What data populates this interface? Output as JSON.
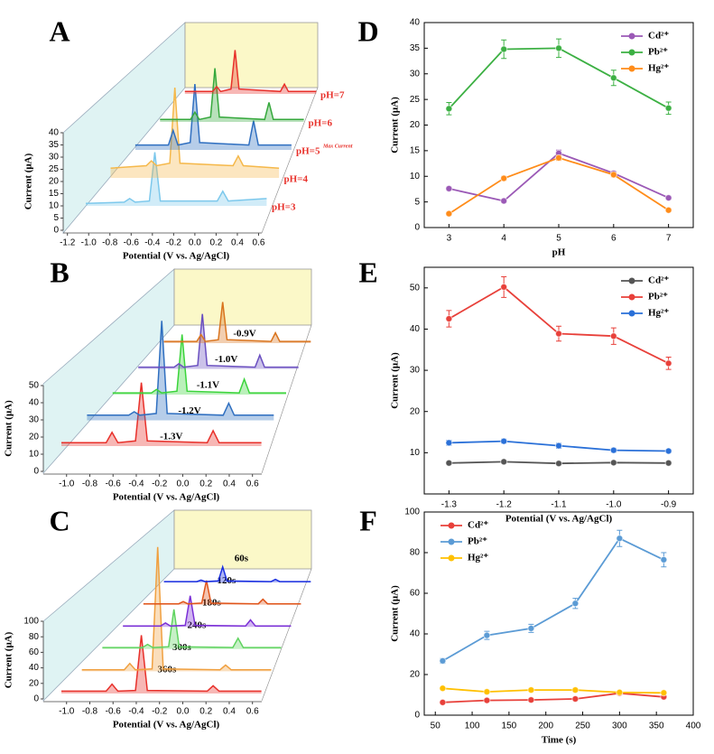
{
  "chart_data": [
    {
      "type": "waterfall",
      "label": "A",
      "xlabel": "Potential (V vs. Ag/AgCl)",
      "ylabel": "Current (μA)",
      "xlim": [
        -1.24,
        0.63
      ],
      "ylim": [
        0,
        40
      ],
      "xticks": [
        -1.2,
        {
          "value": -1,
          "label": "-1.0"
        },
        -0.8,
        -0.6,
        -0.4,
        -0.2,
        {
          "value": 0,
          "label": "0.0"
        },
        0.2,
        0.4,
        0.6
      ],
      "yticks": [
        0,
        5,
        10,
        15,
        20,
        25,
        30,
        35,
        40
      ],
      "label_color": "#e8302a",
      "annotation": "Max Current",
      "annotation_series": 2,
      "x": [
        -1.05,
        -0.7,
        -0.65,
        -0.6,
        -0.47,
        -0.42,
        -0.37,
        0.15,
        0.2,
        0.25,
        0.6
      ],
      "series": [
        {
          "name": "pH=3",
          "color": "#7cc8ec",
          "values": [
            1,
            1.5,
            3,
            1.5,
            2,
            22,
            2,
            2,
            6,
            2,
            3
          ]
        },
        {
          "name": "pH=4",
          "color": "#f5b84a",
          "values": [
            4,
            5,
            7,
            5,
            6,
            37,
            6,
            5,
            9,
            5,
            4
          ]
        },
        {
          "name": "pH=5",
          "color": "#2f6fc0",
          "values": [
            2,
            2,
            8,
            2,
            3,
            27,
            3,
            2,
            12,
            2,
            2
          ]
        },
        {
          "name": "pH=6",
          "color": "#35a83c",
          "values": [
            1,
            1,
            4,
            1,
            2,
            22,
            2,
            1,
            8,
            1,
            1
          ]
        },
        {
          "name": "pH=7",
          "color": "#e8302a",
          "values": [
            1,
            1,
            3,
            1,
            2,
            18,
            2,
            1,
            4,
            1,
            1
          ]
        }
      ]
    },
    {
      "type": "waterfall",
      "label": "B",
      "xlabel": "Potential (V vs. Ag/AgCl)",
      "ylabel": "Current (μA)",
      "xlim": [
        -1.2,
        0.68
      ],
      "ylim": [
        0,
        50
      ],
      "xticks": [
        {
          "value": -1,
          "label": "-1.0"
        },
        -0.8,
        -0.6,
        -0.4,
        -0.2,
        {
          "value": 0,
          "label": "0.0"
        },
        0.2,
        0.4,
        0.6
      ],
      "yticks": [
        0,
        10,
        20,
        30,
        40,
        50
      ],
      "label_color": "#000000",
      "x": [
        -1.1,
        -0.72,
        -0.67,
        -0.62,
        -0.47,
        -0.42,
        -0.37,
        0.14,
        0.19,
        0.24,
        0.6
      ],
      "series": [
        {
          "name": "-1.3V",
          "color": "#e8302a",
          "values": [
            2,
            2,
            8,
            2,
            3,
            37,
            3,
            2,
            9,
            2,
            2
          ]
        },
        {
          "name": "-1.2V",
          "color": "#2f6fc0",
          "values": [
            3,
            3,
            5,
            3,
            4,
            58,
            4,
            3,
            10,
            3,
            3
          ]
        },
        {
          "name": "-1.1V",
          "color": "#3ad43a",
          "values": [
            1,
            1,
            3,
            1,
            2,
            35,
            2,
            1,
            9,
            1,
            1
          ]
        },
        {
          "name": "-1.0V",
          "color": "#6a4fc0",
          "values": [
            1,
            1,
            3,
            1,
            2,
            32,
            2,
            1,
            8,
            1,
            1
          ]
        },
        {
          "name": "-0.9V",
          "color": "#d9741e",
          "values": [
            1,
            1,
            5,
            1,
            2,
            24,
            2,
            1,
            6,
            1,
            1
          ]
        }
      ]
    },
    {
      "type": "waterfall",
      "label": "C",
      "xlabel": "Potential (V vs. Ag/AgCl)",
      "ylabel": "Current (μA)",
      "xlim": [
        -1.2,
        0.68
      ],
      "ylim": [
        0,
        100
      ],
      "xticks": [
        {
          "value": -1,
          "label": "-1.0"
        },
        -0.8,
        -0.6,
        -0.4,
        -0.2,
        {
          "value": 0,
          "label": "0.0"
        },
        0.2,
        0.4,
        0.6
      ],
      "yticks": [
        0,
        20,
        40,
        60,
        80,
        100
      ],
      "label_color": "#000000",
      "x": [
        -1.1,
        -0.72,
        -0.67,
        -0.62,
        -0.47,
        -0.42,
        -0.37,
        0.14,
        0.19,
        0.24,
        0.6
      ],
      "series": [
        {
          "name": "360s",
          "color": "#e8302a",
          "values": [
            3,
            3,
            12,
            3,
            4,
            75,
            4,
            3,
            10,
            3,
            3
          ]
        },
        {
          "name": "300s",
          "color": "#f0a040",
          "values": [
            2,
            2,
            10,
            2,
            3,
            160,
            3,
            2,
            8,
            2,
            2
          ]
        },
        {
          "name": "240s",
          "color": "#5fd35f",
          "values": [
            2,
            2,
            6,
            2,
            3,
            51,
            3,
            2,
            14,
            2,
            2
          ]
        },
        {
          "name": "180s",
          "color": "#7b2fd6",
          "values": [
            1,
            1,
            5,
            1,
            2,
            40,
            2,
            1,
            9,
            1,
            1
          ]
        },
        {
          "name": "120s",
          "color": "#e0541a",
          "values": [
            1,
            1,
            4,
            1,
            2,
            31,
            2,
            1,
            7,
            1,
            1
          ]
        },
        {
          "name": "60s",
          "color": "#1a2fe0",
          "values": [
            1,
            1,
            3,
            1,
            2,
            20,
            2,
            1,
            4,
            1,
            1
          ]
        }
      ]
    },
    {
      "type": "line",
      "label": "D",
      "xlabel": "pH",
      "ylabel": "Current (μA)",
      "xlim": [
        2.55,
        7.45
      ],
      "ylim": [
        0,
        40
      ],
      "xticks": [
        3,
        4,
        5,
        6,
        7
      ],
      "yticks": [
        0,
        5,
        10,
        15,
        20,
        25,
        30,
        35,
        40
      ],
      "legend": "upper right",
      "x": [
        3,
        4,
        5,
        6,
        7
      ],
      "series": [
        {
          "name": "Cd²⁺",
          "color": "#9b59b6",
          "values": [
            7.6,
            5.2,
            14.5,
            10.6,
            5.8
          ],
          "errors": [
            0.3,
            0.3,
            0.6,
            0.4,
            0.3
          ]
        },
        {
          "name": "Pb²⁺",
          "color": "#3cb043",
          "values": [
            23.2,
            34.8,
            35.0,
            29.2,
            23.3
          ],
          "errors": [
            1.2,
            1.8,
            1.8,
            1.5,
            1.2
          ]
        },
        {
          "name": "Hg²⁺",
          "color": "#ff8c1a",
          "values": [
            2.7,
            9.6,
            13.6,
            10.3,
            3.4
          ],
          "errors": [
            0.3,
            0.4,
            0.5,
            0.4,
            0.3
          ]
        }
      ]
    },
    {
      "type": "line",
      "label": "E",
      "xlabel": "Potential (V vs. Ag/AgCl)",
      "ylabel": "Current (μA)",
      "xlim": [
        -1.345,
        -0.855
      ],
      "ylim": [
        0,
        55
      ],
      "xticks": [
        -1.3,
        -1.2,
        -1.1,
        {
          "value": -1,
          "label": "-1.0"
        },
        -0.9
      ],
      "yticks": [
        10,
        20,
        30,
        40,
        50
      ],
      "legend": "upper right",
      "x": [
        -1.3,
        -1.2,
        -1.1,
        -1,
        -0.9
      ],
      "series": [
        {
          "name": "Cd²⁺",
          "color": "#555555",
          "values": [
            7.5,
            7.8,
            7.4,
            7.6,
            7.5
          ],
          "errors": [
            0.3,
            0.3,
            0.3,
            0.3,
            0.3
          ]
        },
        {
          "name": "Pb²⁺",
          "color": "#e8403a",
          "values": [
            42.5,
            50.2,
            38.9,
            38.3,
            31.7
          ],
          "errors": [
            2.0,
            2.5,
            1.8,
            2.0,
            1.5
          ]
        },
        {
          "name": "Hg²⁺",
          "color": "#2a70d8",
          "values": [
            12.4,
            12.8,
            11.7,
            10.6,
            10.4
          ],
          "errors": [
            0.6,
            0.5,
            0.6,
            0.5,
            0.4
          ]
        }
      ]
    },
    {
      "type": "line",
      "label": "F",
      "xlabel": "Time (s)",
      "ylabel": "Current (μA)",
      "xlim": [
        35,
        400
      ],
      "ylim": [
        0,
        100
      ],
      "xticks": [
        50,
        100,
        150,
        200,
        250,
        300,
        350,
        400
      ],
      "yticks": [
        0,
        20,
        40,
        60,
        80,
        100
      ],
      "legend": "upper left",
      "x": [
        60,
        120,
        180,
        240,
        300,
        360
      ],
      "series": [
        {
          "name": "Cd²⁺",
          "color": "#e8403a",
          "values": [
            6.3,
            7.3,
            7.5,
            8.0,
            10.8,
            9.0
          ],
          "errors": [
            0.5,
            0.5,
            0.5,
            0.5,
            0.8,
            0.6
          ]
        },
        {
          "name": "Pb²⁺",
          "color": "#5b9bd5",
          "values": [
            26.7,
            39.3,
            42.7,
            55.0,
            87.0,
            76.5
          ],
          "errors": [
            1.2,
            2.0,
            2.0,
            2.5,
            4.0,
            3.5
          ]
        },
        {
          "name": "Hg²⁺",
          "color": "#ffc000",
          "values": [
            13.2,
            11.5,
            12.4,
            12.4,
            11.2,
            11.0
          ],
          "errors": [
            0.5,
            0.5,
            0.5,
            0.5,
            0.5,
            0.5
          ]
        }
      ]
    }
  ]
}
